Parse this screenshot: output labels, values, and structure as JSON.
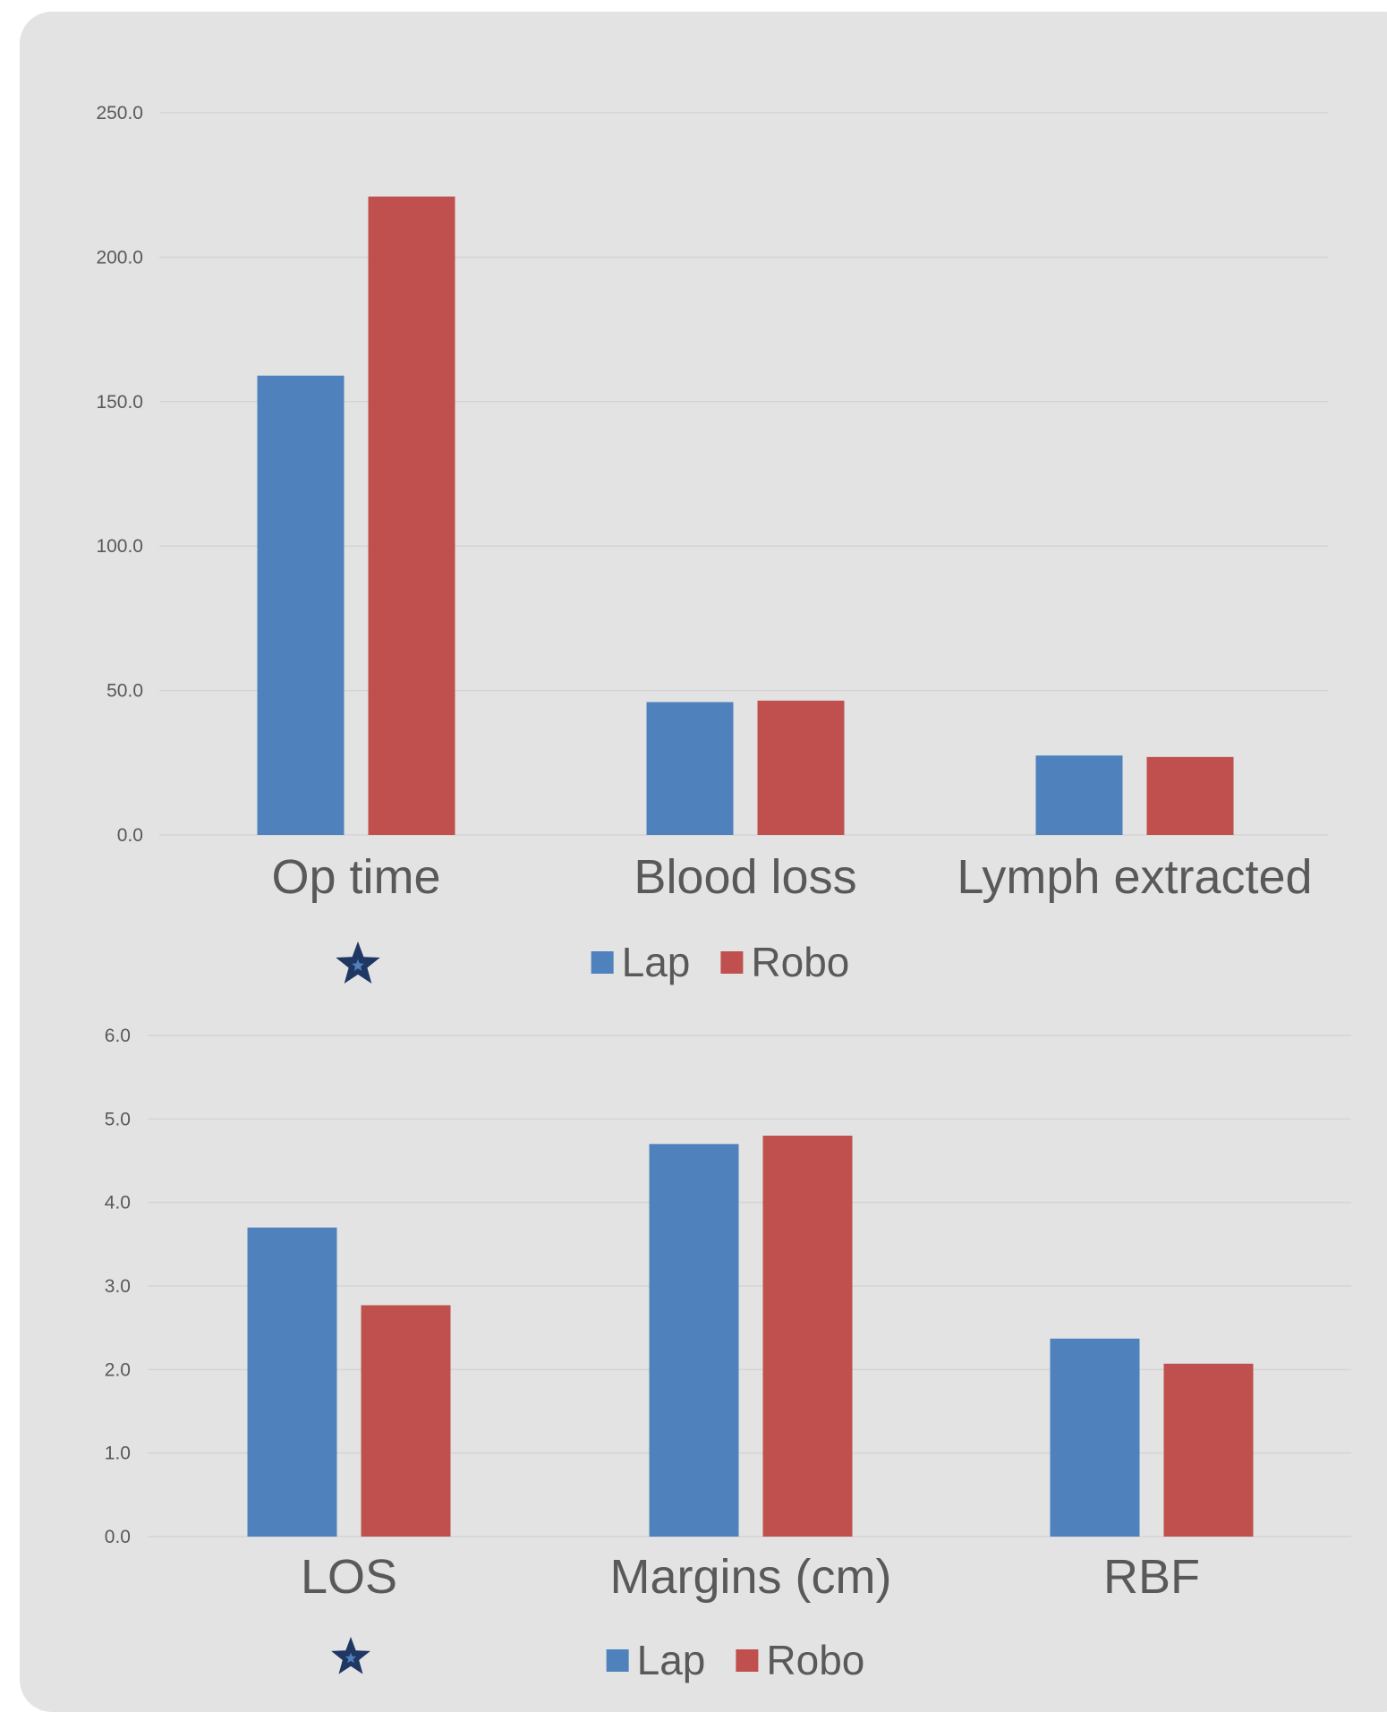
{
  "colors": {
    "lap": "#4f81bd",
    "robo": "#c0504d",
    "star": "#1f3763",
    "panel": "#e3e3e3"
  },
  "chart_data": [
    {
      "type": "bar",
      "categories": [
        "Op time",
        "Blood loss",
        "Lymph extracted"
      ],
      "series": [
        {
          "name": "Lap",
          "values": [
            159.0,
            46.0,
            27.5
          ]
        },
        {
          "name": "Robo",
          "values": [
            221.0,
            46.5,
            27.0
          ]
        }
      ],
      "ylim": [
        0,
        250
      ],
      "yticks": [
        "0.0",
        "50.0",
        "100.0",
        "150.0",
        "200.0",
        "250.0"
      ],
      "grid": true,
      "legend": [
        "Lap",
        "Robo"
      ],
      "legend_position": "bottom",
      "markers": [
        {
          "category": "Op time",
          "icon": "star-icon"
        }
      ]
    },
    {
      "type": "bar",
      "categories": [
        "LOS",
        "Margins (cm)",
        "RBF"
      ],
      "series": [
        {
          "name": "Lap",
          "values": [
            3.7,
            4.7,
            2.37
          ]
        },
        {
          "name": "Robo",
          "values": [
            2.77,
            4.8,
            2.07
          ]
        }
      ],
      "ylim": [
        0,
        6
      ],
      "yticks": [
        "0.0",
        "1.0",
        "2.0",
        "3.0",
        "4.0",
        "5.0",
        "6.0"
      ],
      "grid": true,
      "legend": [
        "Lap",
        "Robo"
      ],
      "legend_position": "bottom",
      "markers": [
        {
          "category": "LOS",
          "icon": "star-icon"
        }
      ]
    }
  ]
}
